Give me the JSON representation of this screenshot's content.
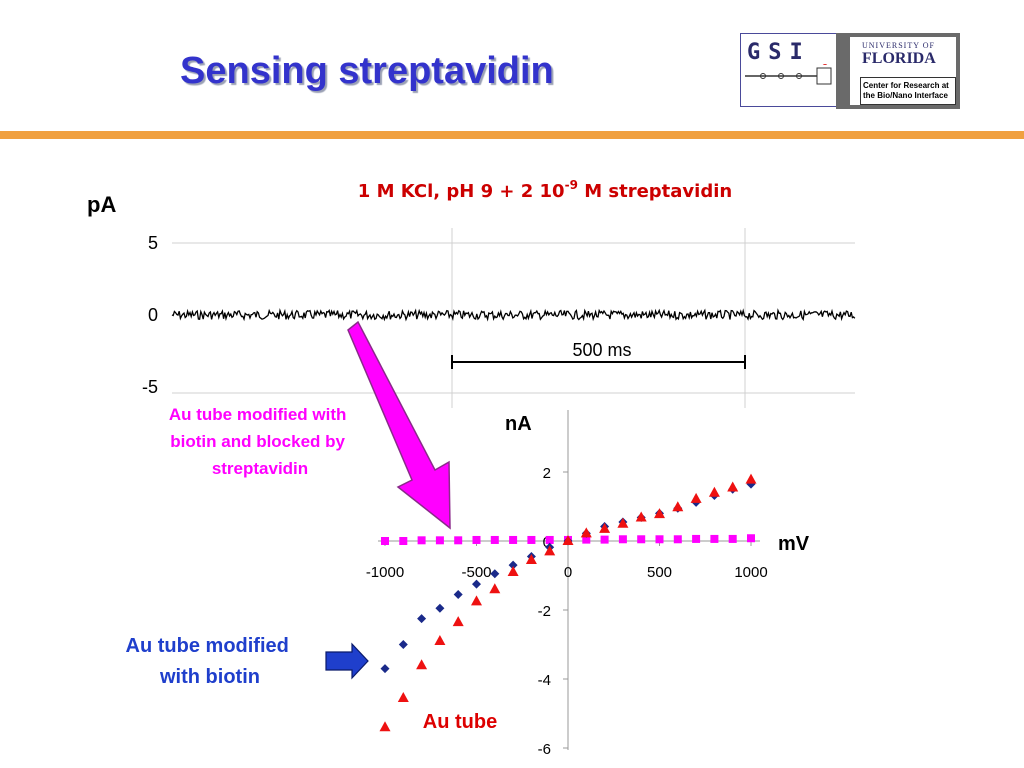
{
  "slide": {
    "title": "Sensing streptavidin",
    "logo": {
      "gsi": "GSI",
      "university_line1": "UNIVERSITY OF",
      "university_line2": "FLORIDA",
      "center_line1": "Center for Research at",
      "center_line2": "the Bio/Nano Interface"
    },
    "colors": {
      "title": "#3333cc",
      "accent_bar": "#f0a040",
      "condition_text": "#cc0000",
      "magenta": "#ff00ff",
      "blue": "#1f3fcc",
      "red": "#e01010"
    }
  },
  "chart_data": [
    {
      "type": "line",
      "title": "1 M KCl, pH 9 + 2 10",
      "title_superscript": "-9",
      "title_suffix": " M streptavidin",
      "ylabel": "pA",
      "yticks": [
        "5",
        "0",
        "-5"
      ],
      "ylim": [
        -5,
        5
      ],
      "trace_level": 0,
      "scale_bar_label": "500 ms",
      "grid": true
    },
    {
      "type": "scatter",
      "xlabel": "mV",
      "ylabel": "nA",
      "xticks": [
        "-1000",
        "-500",
        "0",
        "500",
        "1000"
      ],
      "yticks": [
        "2",
        "0",
        "-2",
        "-4",
        "-6"
      ],
      "xlim": [
        -1000,
        1000
      ],
      "ylim": [
        -6,
        3
      ],
      "series": [
        {
          "name": "Au tube modified with biotin and blocked by streptavidin",
          "color": "#ff00ff",
          "marker": "square",
          "x": [
            -1000,
            -900,
            -800,
            -700,
            -600,
            -500,
            -400,
            -300,
            -200,
            -100,
            0,
            100,
            200,
            300,
            400,
            500,
            600,
            700,
            800,
            900,
            1000
          ],
          "y": [
            0.0,
            0.0,
            0.02,
            0.02,
            0.02,
            0.03,
            0.03,
            0.03,
            0.03,
            0.03,
            0.03,
            0.04,
            0.04,
            0.05,
            0.05,
            0.05,
            0.05,
            0.06,
            0.06,
            0.06,
            0.08
          ]
        },
        {
          "name": "Au tube modified with biotin",
          "color": "#1a2a8a",
          "marker": "diamond",
          "x": [
            -1000,
            -900,
            -800,
            -700,
            -600,
            -500,
            -400,
            -300,
            -200,
            -100,
            0,
            100,
            200,
            300,
            400,
            500,
            600,
            700,
            800,
            900,
            1000
          ],
          "y": [
            -3.7,
            -3.0,
            -2.25,
            -1.95,
            -1.55,
            -1.25,
            -0.95,
            -0.7,
            -0.45,
            -0.18,
            0.0,
            0.22,
            0.42,
            0.55,
            0.68,
            0.8,
            0.95,
            1.12,
            1.32,
            1.5,
            1.65
          ]
        },
        {
          "name": "Au tube",
          "color": "#ee1111",
          "marker": "triangle",
          "x": [
            -1000,
            -900,
            -800,
            -700,
            -600,
            -500,
            -400,
            -300,
            -200,
            -100,
            0,
            100,
            200,
            300,
            400,
            500,
            600,
            700,
            800,
            900,
            1000
          ],
          "y": [
            -5.4,
            -4.55,
            -3.6,
            -2.9,
            -2.35,
            -1.75,
            -1.4,
            -0.9,
            -0.55,
            -0.3,
            0.0,
            0.22,
            0.35,
            0.5,
            0.68,
            0.78,
            0.98,
            1.22,
            1.4,
            1.55,
            1.78
          ]
        }
      ]
    }
  ],
  "annotations": {
    "blocked_label": "Au tube modified with biotin and blocked by streptavidin",
    "biotin_label": "Au tube modified with biotin",
    "au_label": "Au tube"
  }
}
